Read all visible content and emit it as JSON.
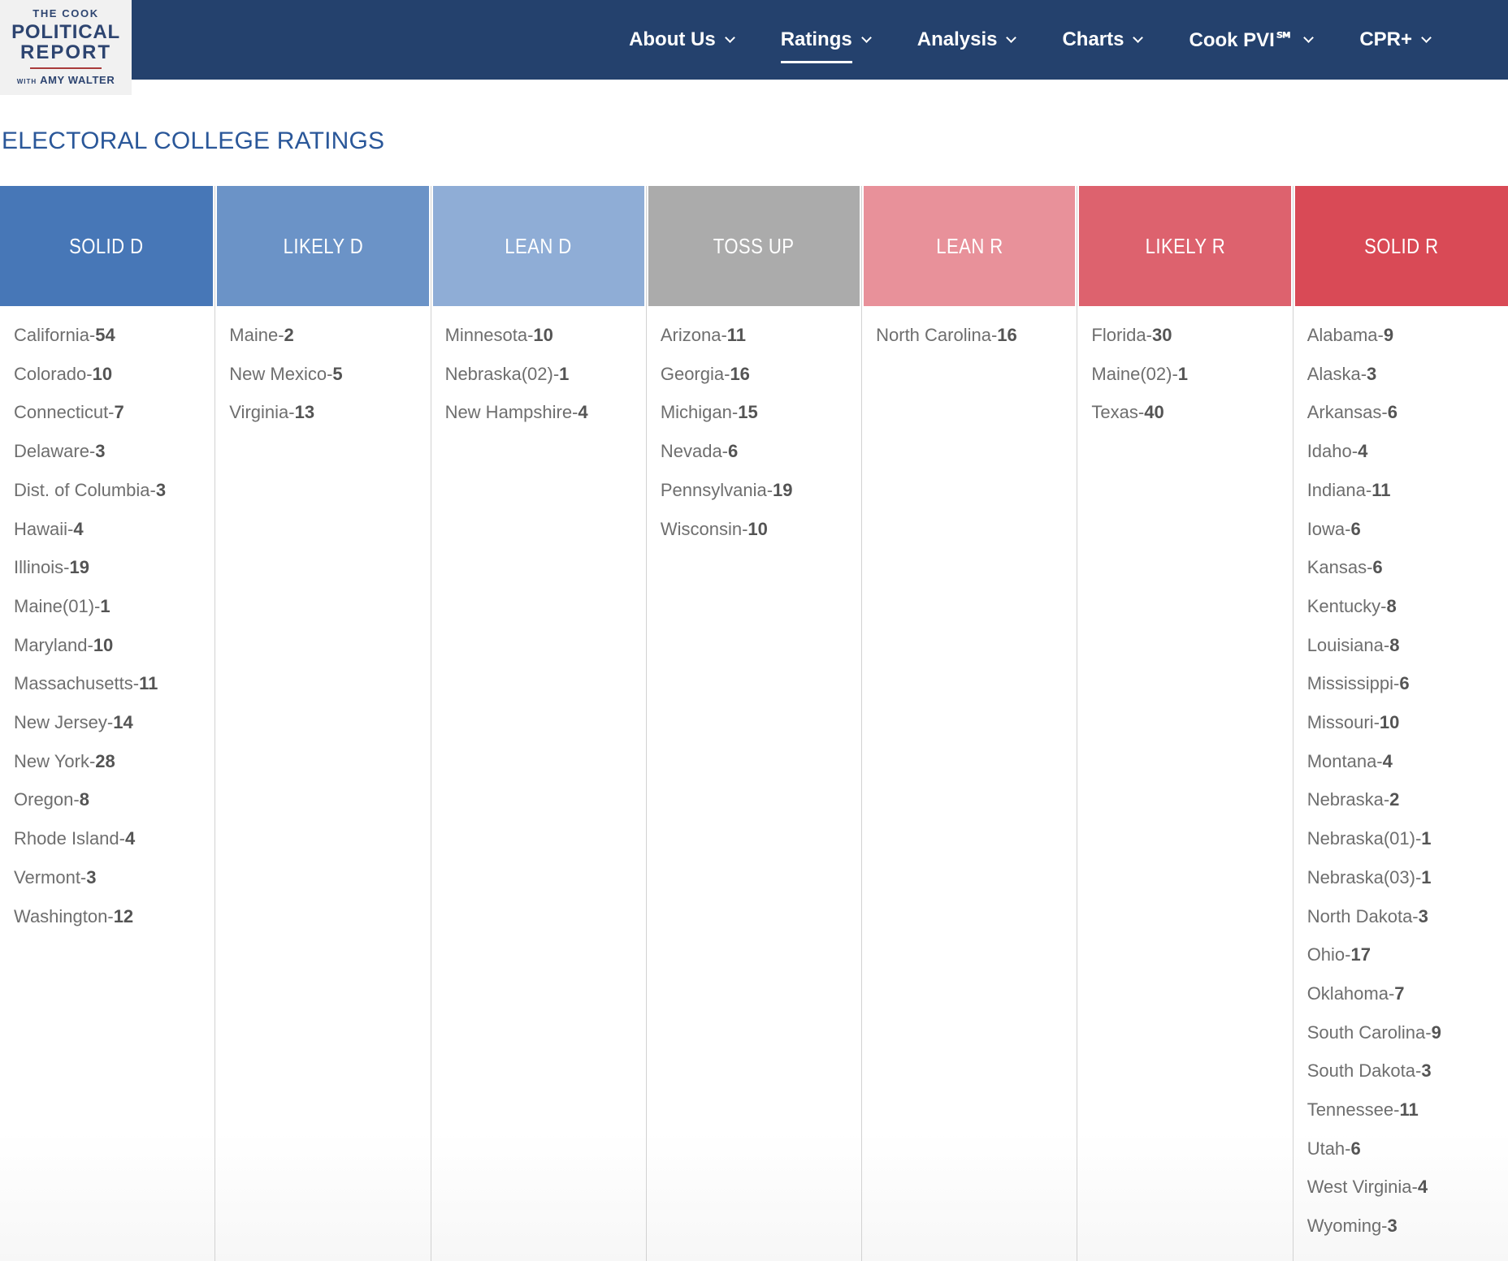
{
  "brand": {
    "line1": "THE COOK",
    "line2": "POLITICAL",
    "line3": "REPORT",
    "tagline_prefix": "WITH",
    "tagline_name": "AMY WALTER"
  },
  "nav": {
    "items": [
      {
        "label": "About Us",
        "active": false
      },
      {
        "label": "Ratings",
        "active": true
      },
      {
        "label": "Analysis",
        "active": false
      },
      {
        "label": "Charts",
        "active": false
      },
      {
        "label": "Cook PVI℠",
        "active": false
      },
      {
        "label": "CPR+",
        "active": false
      }
    ]
  },
  "page": {
    "title": "ELECTORAL COLLEGE RATINGS"
  },
  "colors": {
    "navbar": "#24416d",
    "title": "#2a5799",
    "solid_d": "#4777b7",
    "likely_d": "#6b93c7",
    "lean_d": "#8fadd6",
    "toss_up": "#ababab",
    "lean_r": "#e8919a",
    "likely_r": "#dd626e",
    "solid_r": "#d94a56"
  },
  "ratings": {
    "columns": [
      {
        "key": "solid-d",
        "label": "SOLID D",
        "color": "#4777b7",
        "states": [
          {
            "name": "California",
            "ev": "54"
          },
          {
            "name": "Colorado",
            "ev": "10"
          },
          {
            "name": "Connecticut",
            "ev": "7"
          },
          {
            "name": "Delaware",
            "ev": "3"
          },
          {
            "name": "Dist. of Columbia",
            "ev": "3"
          },
          {
            "name": "Hawaii",
            "ev": "4"
          },
          {
            "name": "Illinois",
            "ev": "19"
          },
          {
            "name": "Maine(01)",
            "ev": "1"
          },
          {
            "name": "Maryland",
            "ev": "10"
          },
          {
            "name": "Massachusetts",
            "ev": "11"
          },
          {
            "name": "New Jersey",
            "ev": "14"
          },
          {
            "name": "New York",
            "ev": "28"
          },
          {
            "name": "Oregon",
            "ev": "8"
          },
          {
            "name": "Rhode Island",
            "ev": "4"
          },
          {
            "name": "Vermont",
            "ev": "3"
          },
          {
            "name": "Washington",
            "ev": "12"
          }
        ]
      },
      {
        "key": "likely-d",
        "label": "LIKELY D",
        "color": "#6b93c7",
        "states": [
          {
            "name": "Maine",
            "ev": "2"
          },
          {
            "name": "New Mexico",
            "ev": "5"
          },
          {
            "name": "Virginia",
            "ev": "13"
          }
        ]
      },
      {
        "key": "lean-d",
        "label": "LEAN D",
        "color": "#8fadd6",
        "states": [
          {
            "name": "Minnesota",
            "ev": "10"
          },
          {
            "name": "Nebraska(02)",
            "ev": "1"
          },
          {
            "name": "New Hampshire",
            "ev": "4"
          }
        ]
      },
      {
        "key": "toss-up",
        "label": "TOSS UP",
        "color": "#ababab",
        "states": [
          {
            "name": "Arizona",
            "ev": "11"
          },
          {
            "name": "Georgia",
            "ev": "16"
          },
          {
            "name": "Michigan",
            "ev": "15"
          },
          {
            "name": "Nevada",
            "ev": "6"
          },
          {
            "name": "Pennsylvania",
            "ev": "19"
          },
          {
            "name": "Wisconsin",
            "ev": "10"
          }
        ]
      },
      {
        "key": "lean-r",
        "label": "LEAN R",
        "color": "#e8919a",
        "states": [
          {
            "name": "North Carolina",
            "ev": "16"
          }
        ]
      },
      {
        "key": "likely-r",
        "label": "LIKELY R",
        "color": "#dd626e",
        "states": [
          {
            "name": "Florida",
            "ev": "30"
          },
          {
            "name": "Maine(02)",
            "ev": "1"
          },
          {
            "name": "Texas",
            "ev": "40"
          }
        ]
      },
      {
        "key": "solid-r",
        "label": "SOLID R",
        "color": "#d94a56",
        "states": [
          {
            "name": "Alabama",
            "ev": "9"
          },
          {
            "name": "Alaska",
            "ev": "3"
          },
          {
            "name": "Arkansas",
            "ev": "6"
          },
          {
            "name": "Idaho",
            "ev": "4"
          },
          {
            "name": "Indiana",
            "ev": "11"
          },
          {
            "name": "Iowa",
            "ev": "6"
          },
          {
            "name": "Kansas",
            "ev": "6"
          },
          {
            "name": "Kentucky",
            "ev": "8"
          },
          {
            "name": "Louisiana",
            "ev": "8"
          },
          {
            "name": "Mississippi",
            "ev": "6"
          },
          {
            "name": "Missouri",
            "ev": "10"
          },
          {
            "name": "Montana",
            "ev": "4"
          },
          {
            "name": "Nebraska",
            "ev": "2"
          },
          {
            "name": "Nebraska(01)",
            "ev": "1"
          },
          {
            "name": "Nebraska(03)",
            "ev": "1"
          },
          {
            "name": "North Dakota",
            "ev": "3"
          },
          {
            "name": "Ohio",
            "ev": "17"
          },
          {
            "name": "Oklahoma",
            "ev": "7"
          },
          {
            "name": "South Carolina",
            "ev": "9"
          },
          {
            "name": "South Dakota",
            "ev": "3"
          },
          {
            "name": "Tennessee",
            "ev": "11"
          },
          {
            "name": "Utah",
            "ev": "6"
          },
          {
            "name": "West Virginia",
            "ev": "4"
          },
          {
            "name": "Wyoming",
            "ev": "3"
          }
        ]
      }
    ]
  }
}
